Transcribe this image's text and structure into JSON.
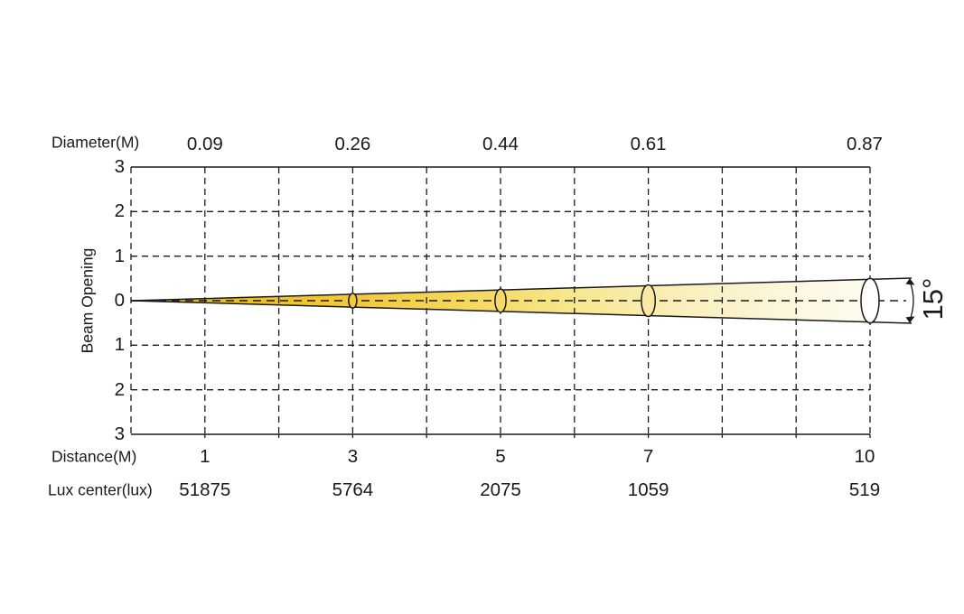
{
  "chart_data": {
    "type": "area",
    "description": "Light beam photometric cone diagram",
    "beam_angle_label": "15°",
    "axis": {
      "diameter_label": "Diameter(M)",
      "y_label": "Beam Opening",
      "distance_label": "Distance(M)",
      "lux_label": "Lux center(lux)"
    },
    "y_ticks": [
      "3",
      "2",
      "1",
      "0",
      "1",
      "2",
      "3"
    ],
    "ylim": [
      -3,
      3
    ],
    "x_max": 10,
    "x_grid_step": 1,
    "grid_style": "dashed",
    "columns": [
      {
        "distance": "1",
        "diameter": "0.09",
        "lux": "51875",
        "marker": false
      },
      {
        "distance": "3",
        "diameter": "0.26",
        "lux": "5764",
        "marker": true
      },
      {
        "distance": "5",
        "diameter": "0.44",
        "lux": "2075",
        "marker": true
      },
      {
        "distance": "7",
        "diameter": "0.61",
        "lux": "1059",
        "marker": true
      },
      {
        "distance": "10",
        "diameter": "0.87",
        "lux": "519",
        "marker": true
      }
    ],
    "colors": {
      "line": "#1a1a1a",
      "beam_gradient_offsets": [
        0,
        0.12,
        0.3,
        0.45,
        0.6,
        0.75,
        0.9,
        1
      ],
      "beam_gradient_stops": [
        "#dfa81a",
        "#eebd18",
        "#f2c93c",
        "#f5d75c",
        "#f7e78f",
        "#faefbc",
        "#fcf7e0",
        "#fdfbee"
      ],
      "marker_fills": [
        "#f3ca35",
        "#f6d96a",
        "#f9e9a5",
        "#ffffff"
      ]
    }
  }
}
